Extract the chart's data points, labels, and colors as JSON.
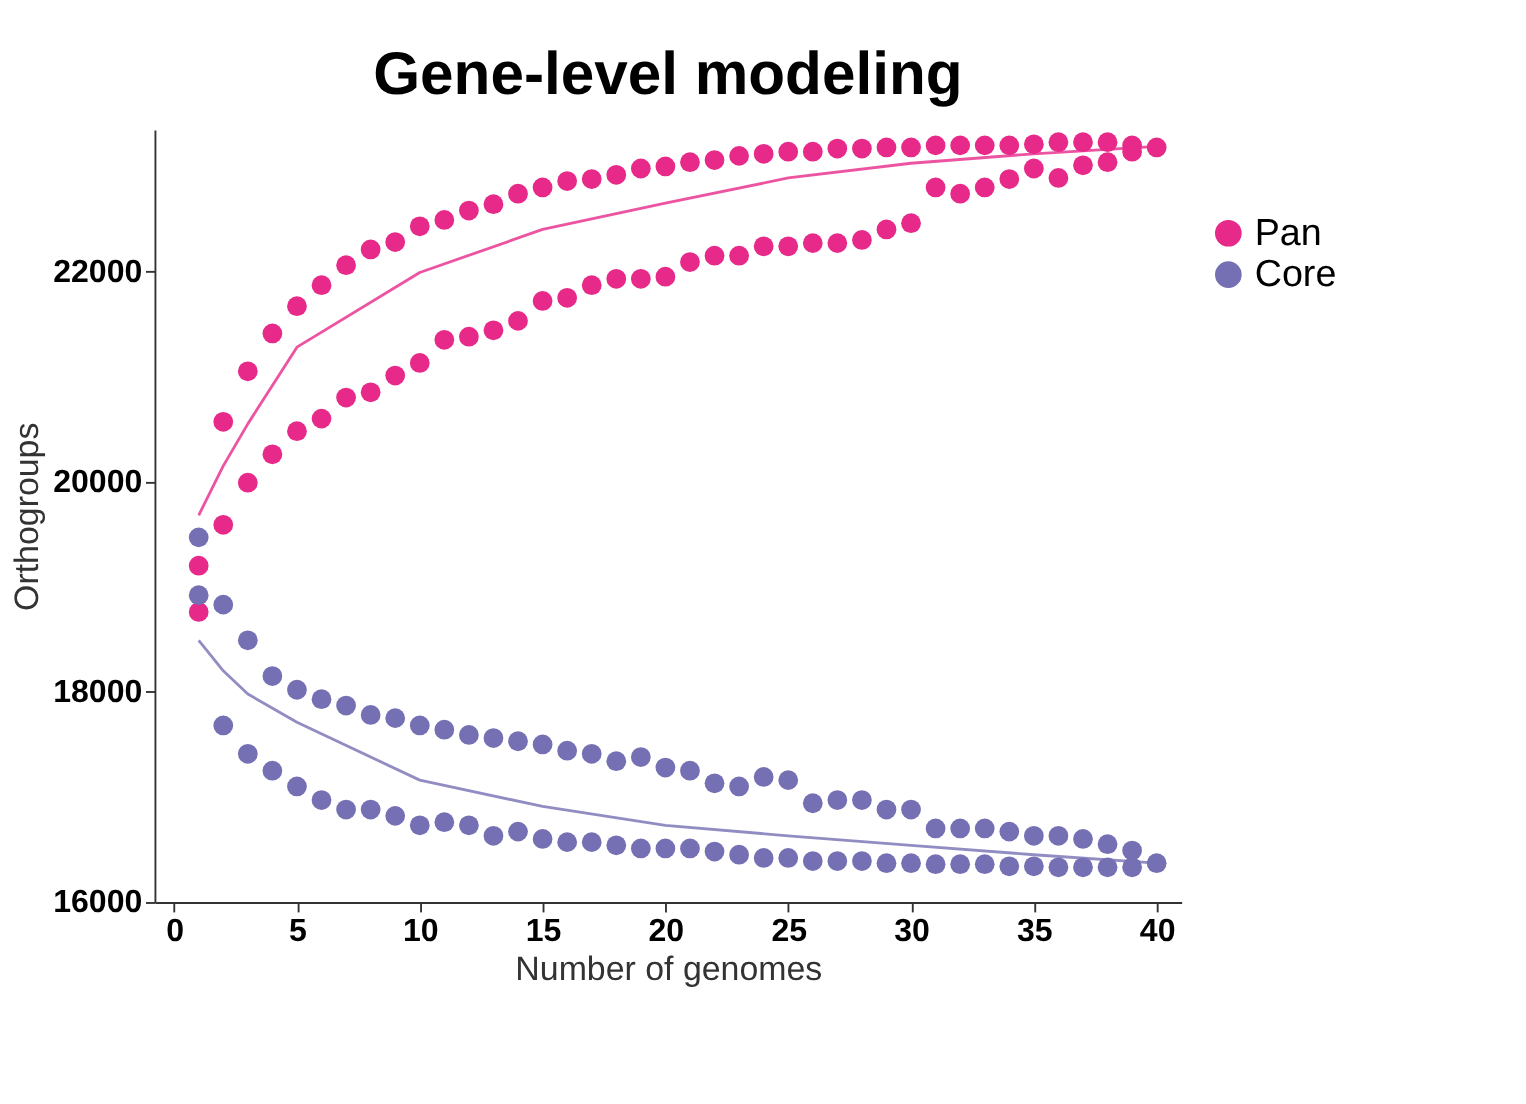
{
  "chart_data": {
    "type": "scatter",
    "title": "Gene-level modeling",
    "xlabel": "Number of genomes",
    "ylabel": "Orthogroups",
    "xlim": [
      -0.8,
      41
    ],
    "xticks": [
      0,
      5,
      10,
      15,
      20,
      25,
      30,
      35,
      40
    ],
    "ylim": [
      16000,
      23350
    ],
    "yticks": [
      16000,
      18000,
      20000,
      22000
    ],
    "grid": false,
    "legend": "top right",
    "marker": "circle",
    "series": [
      {
        "name": "Pan",
        "color": "#e7298a",
        "x": [
          1,
          1,
          2,
          2,
          3,
          3,
          4,
          4,
          5,
          5,
          6,
          6,
          7,
          7,
          8,
          8,
          9,
          9,
          10,
          10,
          11,
          11,
          12,
          12,
          13,
          13,
          14,
          14,
          15,
          15,
          16,
          16,
          17,
          17,
          18,
          18,
          19,
          19,
          20,
          20,
          21,
          21,
          22,
          22,
          23,
          23,
          24,
          24,
          25,
          25,
          26,
          26,
          27,
          27,
          28,
          28,
          29,
          29,
          30,
          30,
          31,
          31,
          32,
          32,
          33,
          33,
          34,
          34,
          35,
          35,
          36,
          36,
          37,
          37,
          38,
          38,
          39,
          39,
          40
        ],
        "values": [
          19200,
          18760,
          20570,
          19590,
          21050,
          19990,
          21410,
          20260,
          21670,
          20480,
          21870,
          20600,
          22060,
          20800,
          22210,
          20850,
          22280,
          21010,
          22430,
          21130,
          22490,
          21350,
          22580,
          21380,
          22640,
          21440,
          22740,
          21530,
          22800,
          21720,
          22860,
          21750,
          22880,
          21870,
          22920,
          21930,
          22980,
          21930,
          23000,
          21950,
          23040,
          22090,
          23060,
          22150,
          23100,
          22150,
          23120,
          22240,
          23140,
          22240,
          23140,
          22270,
          23170,
          22270,
          23170,
          22300,
          23180,
          22400,
          23180,
          22460,
          23200,
          22800,
          23200,
          22740,
          23200,
          22800,
          23200,
          22880,
          23210,
          22980,
          23230,
          22890,
          23230,
          23010,
          23230,
          23040,
          23200,
          23140,
          23180
        ]
      },
      {
        "name": "Core",
        "color": "#7570b3",
        "x": [
          1,
          1,
          2,
          2,
          3,
          3,
          4,
          4,
          5,
          5,
          6,
          6,
          7,
          7,
          8,
          8,
          9,
          9,
          10,
          10,
          11,
          11,
          12,
          12,
          13,
          13,
          14,
          14,
          15,
          15,
          16,
          16,
          17,
          17,
          18,
          18,
          19,
          19,
          20,
          20,
          21,
          21,
          22,
          22,
          23,
          23,
          24,
          24,
          25,
          25,
          26,
          26,
          27,
          27,
          28,
          28,
          29,
          29,
          30,
          30,
          31,
          31,
          32,
          32,
          33,
          33,
          34,
          34,
          35,
          35,
          36,
          36,
          37,
          37,
          38,
          38,
          39,
          39,
          40
        ],
        "values": [
          19470,
          18920,
          18830,
          17680,
          18490,
          17410,
          18150,
          17250,
          18020,
          17100,
          17930,
          16970,
          17870,
          16880,
          17780,
          16880,
          17750,
          16820,
          17680,
          16730,
          17640,
          16760,
          17590,
          16730,
          17560,
          16630,
          17530,
          16670,
          17500,
          16600,
          17440,
          16570,
          17410,
          16570,
          17340,
          16540,
          17380,
          16510,
          17280,
          16510,
          17250,
          16510,
          17130,
          16480,
          17100,
          16450,
          17190,
          16420,
          17160,
          16420,
          16940,
          16390,
          16970,
          16390,
          16970,
          16390,
          16880,
          16370,
          16880,
          16370,
          16700,
          16360,
          16700,
          16360,
          16700,
          16360,
          16670,
          16340,
          16630,
          16340,
          16630,
          16330,
          16600,
          16330,
          16550,
          16330,
          16490,
          16330,
          16370
        ]
      },
      {
        "type": "line",
        "marker": "none",
        "line_style": "solid",
        "color": "#e7298a",
        "x": [
          1,
          2,
          3,
          5,
          10,
          15,
          20,
          25,
          30,
          35,
          40
        ],
        "values": [
          19680,
          20150,
          20550,
          21280,
          21990,
          22400,
          22650,
          22890,
          23030,
          23120,
          23190
        ]
      },
      {
        "type": "line",
        "marker": "none",
        "line_style": "solid",
        "color": "#7570b3",
        "x": [
          1,
          2,
          3,
          5,
          10,
          15,
          20,
          25,
          30,
          35,
          40
        ],
        "values": [
          18490,
          18200,
          17980,
          17710,
          17160,
          16910,
          16730,
          16630,
          16540,
          16450,
          16370
        ]
      }
    ]
  }
}
